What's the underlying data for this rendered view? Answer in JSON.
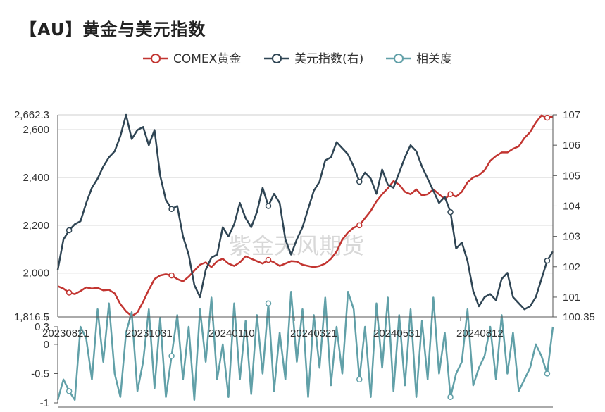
{
  "header": {
    "title": "【AU】黄金与美元指数"
  },
  "watermark": "紫金天风期货",
  "chart_data": [
    {
      "type": "line",
      "legend_position": "top-center",
      "x_ticks": [
        "20230821",
        "20231031",
        "20240110",
        "20240321",
        "20240531",
        "20240812"
      ],
      "y_left": {
        "min": 1816.5,
        "max": 2662.3,
        "ticks": [
          "1,816.5",
          "2,000",
          "2,200",
          "2,400",
          "2,600",
          "2,662.3"
        ]
      },
      "y_right": {
        "min": 100.35,
        "max": 107,
        "ticks": [
          "100.35",
          "101",
          "102",
          "103",
          "104",
          "105",
          "106",
          "107"
        ]
      },
      "series": [
        {
          "name": "COMEX黄金",
          "axis": "left",
          "color": "#c23531",
          "values": [
            1945,
            1935,
            1918,
            1912,
            1925,
            1940,
            1935,
            1938,
            1928,
            1930,
            1915,
            1870,
            1840,
            1820,
            1835,
            1880,
            1930,
            1975,
            1990,
            1995,
            1990,
            1975,
            1965,
            1985,
            2010,
            2035,
            2045,
            2025,
            2050,
            2060,
            2040,
            2030,
            2045,
            2070,
            2060,
            2050,
            2040,
            2055,
            2045,
            2030,
            2040,
            2050,
            2048,
            2035,
            2030,
            2025,
            2030,
            2040,
            2060,
            2090,
            2140,
            2170,
            2190,
            2200,
            2230,
            2260,
            2300,
            2330,
            2355,
            2385,
            2370,
            2340,
            2330,
            2350,
            2325,
            2330,
            2350,
            2330,
            2310,
            2330,
            2320,
            2340,
            2380,
            2400,
            2410,
            2430,
            2470,
            2490,
            2505,
            2505,
            2520,
            2530,
            2565,
            2590,
            2630,
            2660,
            2650,
            2655
          ]
        },
        {
          "name": "美元指数(右)",
          "axis": "right",
          "color": "#2f4554",
          "values": [
            101.9,
            102.9,
            103.2,
            103.4,
            103.5,
            104.1,
            104.6,
            104.9,
            105.3,
            105.6,
            105.8,
            106.3,
            107.0,
            106.2,
            106.5,
            106.6,
            106.0,
            106.5,
            105.0,
            104.2,
            103.9,
            104.0,
            103.0,
            102.4,
            101.4,
            101.0,
            101.9,
            102.3,
            102.4,
            103.3,
            103.0,
            103.4,
            104.1,
            103.6,
            103.3,
            103.8,
            104.6,
            104.0,
            104.4,
            104.1,
            102.9,
            102.4,
            102.9,
            103.3,
            103.9,
            104.5,
            104.8,
            105.5,
            105.6,
            106.1,
            105.9,
            105.7,
            105.3,
            104.8,
            105.1,
            104.9,
            104.4,
            105.2,
            104.7,
            104.6,
            105.1,
            105.6,
            106.0,
            105.8,
            105.3,
            104.9,
            104.5,
            104.1,
            104.3,
            103.8,
            102.6,
            102.8,
            102.2,
            101.2,
            100.7,
            101.0,
            101.1,
            100.9,
            101.6,
            101.8,
            101.0,
            100.8,
            100.6,
            100.7,
            101.0,
            101.6,
            102.2,
            102.5
          ]
        },
        {
          "name": "相关度",
          "axis": "bottom",
          "color": "#61a0a8",
          "values": [
            -0.95,
            -0.6,
            -0.8,
            -0.95,
            0.3,
            0.1,
            -0.6,
            0.6,
            -0.3,
            0.7,
            -0.5,
            -0.9,
            0.2,
            0.55,
            -0.8,
            -0.3,
            0.6,
            -0.75,
            0.45,
            -0.9,
            -0.2,
            0.5,
            -0.6,
            0.3,
            -0.95,
            0.6,
            -0.3,
            0.8,
            -0.6,
            0.0,
            -0.9,
            0.7,
            -0.6,
            0.4,
            -0.85,
            0.5,
            -0.5,
            0.7,
            -0.8,
            0.2,
            -0.6,
            0.9,
            -0.3,
            0.6,
            -0.9,
            0.5,
            -0.4,
            0.8,
            -0.7,
            0.3,
            -0.5,
            0.9,
            0.6,
            -0.6,
            0.3,
            -0.9,
            0.7,
            -0.4,
            0.8,
            -0.8,
            0.5,
            -0.7,
            0.6,
            -0.9,
            0.4,
            -0.6,
            0.8,
            -0.5,
            0.2,
            -0.9,
            -0.5,
            -0.3,
            0.6,
            -0.7,
            -0.4,
            -0.2,
            0.3,
            -0.6,
            0.5,
            -0.5,
            0.2,
            -0.8,
            -0.6,
            -0.4,
            0.0,
            -0.2,
            -0.5,
            0.3
          ]
        }
      ]
    }
  ]
}
